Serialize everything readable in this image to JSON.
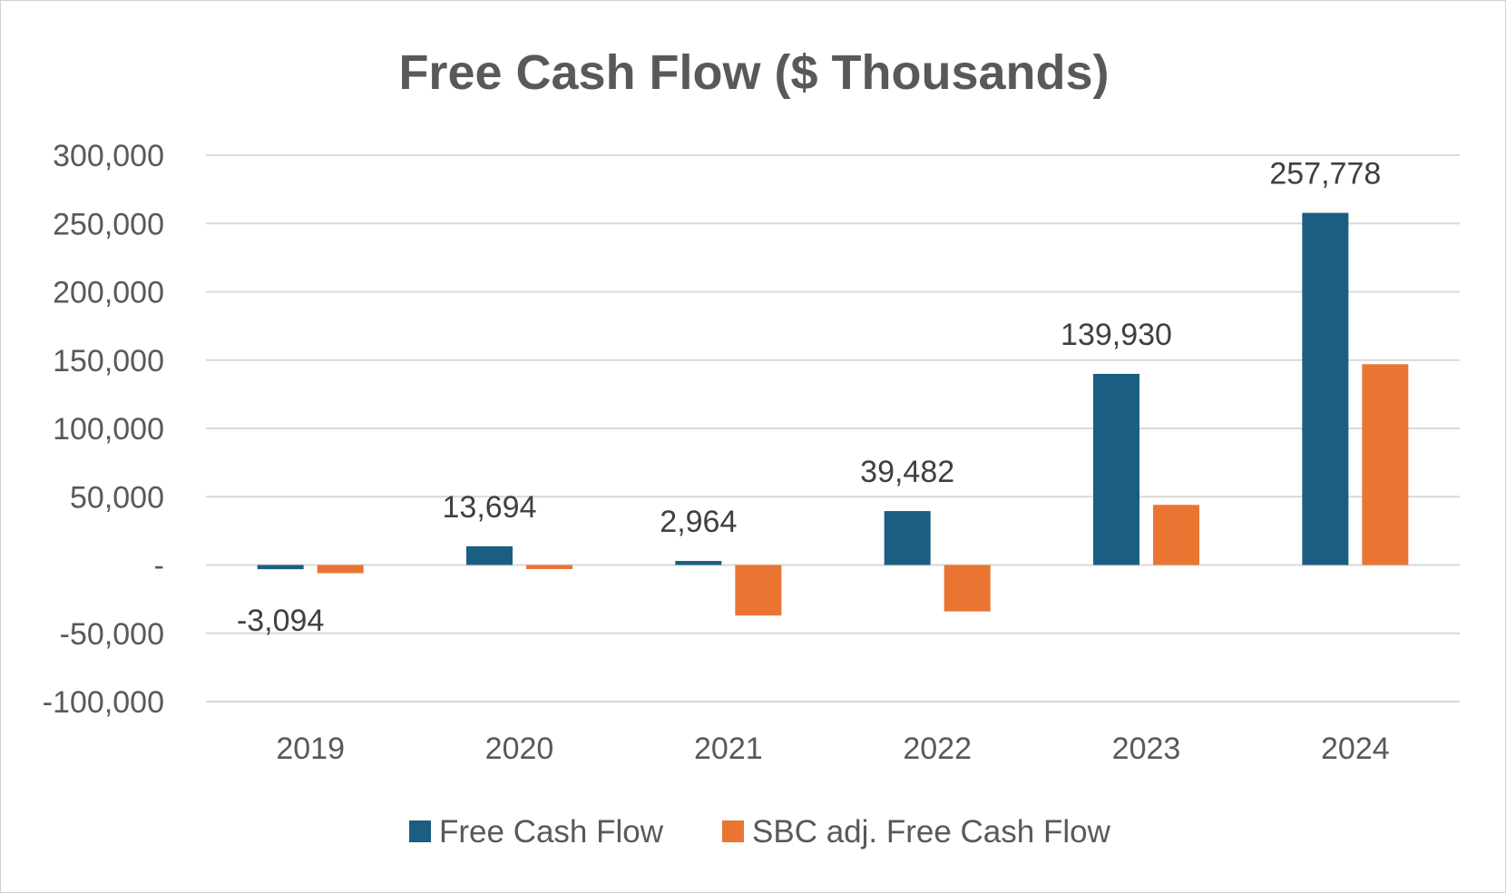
{
  "chart_data": {
    "type": "bar",
    "title": "Free Cash Flow ($ Thousands)",
    "xlabel": "",
    "ylabel": "",
    "categories": [
      "2019",
      "2020",
      "2021",
      "2022",
      "2023",
      "2024"
    ],
    "ylim": [
      -100000,
      300000
    ],
    "y_ticks": [
      300000,
      250000,
      200000,
      150000,
      100000,
      50000,
      0,
      -50000,
      -100000
    ],
    "y_tick_labels": [
      "300,000",
      "250,000",
      "200,000",
      "150,000",
      "100,000",
      "50,000",
      "-",
      "-50,000",
      "-100,000"
    ],
    "grid": true,
    "legend_position": "bottom",
    "series": [
      {
        "name": "Free Cash Flow",
        "color": "#1b5e82",
        "values": [
          -3094,
          13694,
          2964,
          39482,
          139930,
          257778
        ],
        "data_labels": [
          "-3,094",
          "13,694",
          "2,964",
          "39,482",
          "139,930",
          "257,778"
        ]
      },
      {
        "name": "SBC adj. Free Cash Flow",
        "color": "#ea7533",
        "values": [
          -6000,
          -3000,
          -37000,
          -34000,
          44000,
          147000
        ],
        "data_labels": []
      }
    ]
  }
}
